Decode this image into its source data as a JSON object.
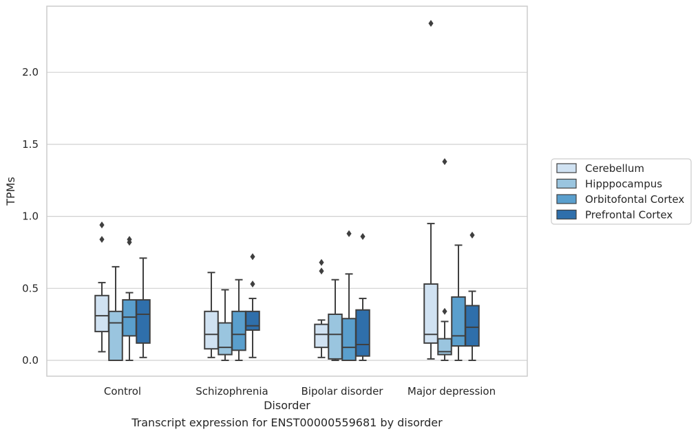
{
  "chart_data": {
    "type": "box",
    "xlabel": "Disorder",
    "ylabel": "TPMs",
    "caption": "Transcript expression for ENST00000559681 by disorder",
    "categories": [
      "Control",
      "Schizophrenia",
      "Bipolar disorder",
      "Major depression"
    ],
    "ylim": [
      -0.11,
      2.46
    ],
    "yticks": [
      0.0,
      0.5,
      1.0,
      1.5,
      2.0
    ],
    "grid": "horizontal",
    "legend_position": "right",
    "series": [
      {
        "name": "Cerebellum",
        "color": "#d0e2f2",
        "boxes": [
          {
            "whisker_low": 0.06,
            "q1": 0.2,
            "median": 0.31,
            "q3": 0.45,
            "whisker_high": 0.54,
            "outliers": [
              0.84,
              0.94
            ]
          },
          {
            "whisker_low": 0.02,
            "q1": 0.08,
            "median": 0.18,
            "q3": 0.34,
            "whisker_high": 0.61,
            "outliers": []
          },
          {
            "whisker_low": 0.02,
            "q1": 0.09,
            "median": 0.18,
            "q3": 0.25,
            "whisker_high": 0.28,
            "outliers": [
              0.62,
              0.68
            ]
          },
          {
            "whisker_low": 0.01,
            "q1": 0.12,
            "median": 0.18,
            "q3": 0.53,
            "whisker_high": 0.95,
            "outliers": [
              2.34
            ]
          }
        ]
      },
      {
        "name": "Hipppocampus",
        "color": "#9ac5df",
        "boxes": [
          {
            "whisker_low": 0.0,
            "q1": 0.0,
            "median": 0.26,
            "q3": 0.34,
            "whisker_high": 0.65,
            "outliers": []
          },
          {
            "whisker_low": 0.0,
            "q1": 0.04,
            "median": 0.09,
            "q3": 0.26,
            "whisker_high": 0.49,
            "outliers": []
          },
          {
            "whisker_low": 0.0,
            "q1": 0.01,
            "median": 0.18,
            "q3": 0.32,
            "whisker_high": 0.56,
            "outliers": []
          },
          {
            "whisker_low": 0.0,
            "q1": 0.04,
            "median": 0.06,
            "q3": 0.15,
            "whisker_high": 0.27,
            "outliers": [
              0.34,
              1.38
            ]
          }
        ]
      },
      {
        "name": "Orbitofontal Cortex",
        "color": "#5a9fcd",
        "boxes": [
          {
            "whisker_low": 0.0,
            "q1": 0.17,
            "median": 0.3,
            "q3": 0.42,
            "whisker_high": 0.47,
            "outliers": [
              0.82,
              0.84
            ]
          },
          {
            "whisker_low": 0.0,
            "q1": 0.07,
            "median": 0.18,
            "q3": 0.34,
            "whisker_high": 0.56,
            "outliers": []
          },
          {
            "whisker_low": 0.0,
            "q1": 0.0,
            "median": 0.09,
            "q3": 0.29,
            "whisker_high": 0.6,
            "outliers": [
              0.88
            ]
          },
          {
            "whisker_low": 0.0,
            "q1": 0.1,
            "median": 0.17,
            "q3": 0.44,
            "whisker_high": 0.8,
            "outliers": []
          }
        ]
      },
      {
        "name": "Prefrontal Cortex",
        "color": "#2f6fab",
        "boxes": [
          {
            "whisker_low": 0.02,
            "q1": 0.12,
            "median": 0.32,
            "q3": 0.42,
            "whisker_high": 0.71,
            "outliers": []
          },
          {
            "whisker_low": 0.02,
            "q1": 0.21,
            "median": 0.24,
            "q3": 0.34,
            "whisker_high": 0.43,
            "outliers": [
              0.53,
              0.72
            ]
          },
          {
            "whisker_low": 0.0,
            "q1": 0.03,
            "median": 0.11,
            "q3": 0.35,
            "whisker_high": 0.43,
            "outliers": [
              0.86
            ]
          },
          {
            "whisker_low": 0.0,
            "q1": 0.1,
            "median": 0.23,
            "q3": 0.38,
            "whisker_high": 0.48,
            "outliers": [
              0.87
            ]
          }
        ]
      }
    ]
  }
}
